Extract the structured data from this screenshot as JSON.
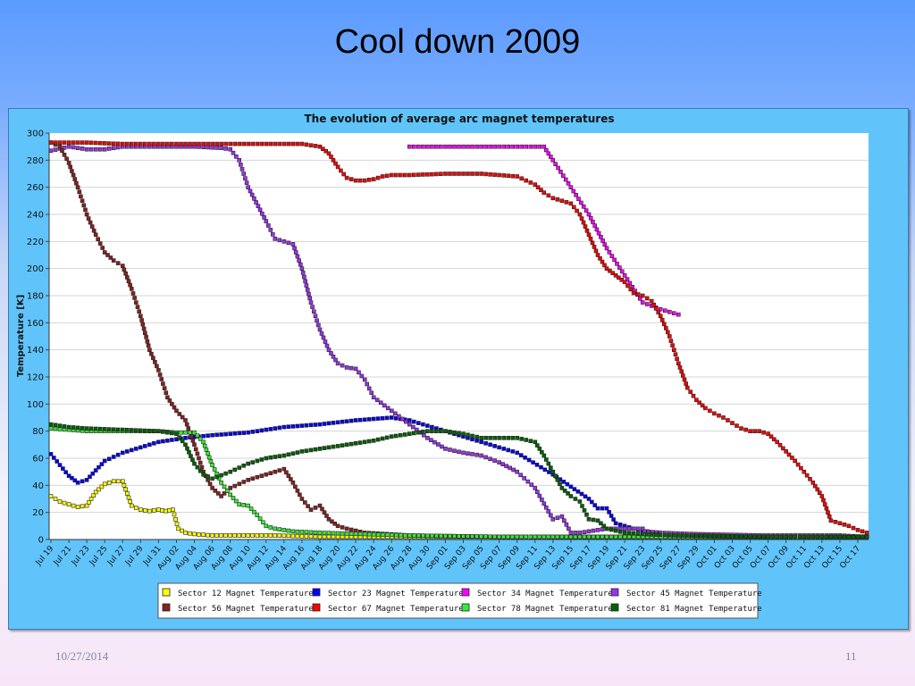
{
  "slide": {
    "title": "Cool down 2009",
    "footer_date": "10/27/2014",
    "page_number": "11"
  },
  "chart_data": {
    "type": "scatter",
    "title": "The evolution of average arc magnet temperatures",
    "ylabel": "Temperature [K]",
    "xlabel": "",
    "ylim": [
      0,
      300
    ],
    "yticks": [
      0,
      20,
      40,
      60,
      80,
      100,
      120,
      140,
      160,
      180,
      200,
      220,
      240,
      260,
      280,
      300
    ],
    "x_start": "Jul 19",
    "x_end": "Oct 18",
    "x_ticks": [
      "Jul 19",
      "Jul 21",
      "Jul 23",
      "Jul 25",
      "Jul 27",
      "Jul 29",
      "Jul 31",
      "Aug 02",
      "Aug 04",
      "Aug 06",
      "Aug 08",
      "Aug 10",
      "Aug 12",
      "Aug 14",
      "Aug 16",
      "Aug 18",
      "Aug 20",
      "Aug 22",
      "Aug 24",
      "Aug 26",
      "Aug 28",
      "Aug 30",
      "Sep 01",
      "Sep 03",
      "Sep 05",
      "Sep 07",
      "Sep 09",
      "Sep 11",
      "Sep 13",
      "Sep 15",
      "Sep 17",
      "Sep 19",
      "Sep 21",
      "Sep 23",
      "Sep 25",
      "Sep 27",
      "Sep 29",
      "Oct 01",
      "Oct 03",
      "Oct 05",
      "Oct 07",
      "Oct 09",
      "Oct 11",
      "Oct 13",
      "Oct 15",
      "Oct 17"
    ],
    "grid": true,
    "legend_position": "bottom",
    "series": [
      {
        "name": "Sector 12 Magnet Temperature",
        "color": "#ffff00",
        "points": [
          [
            0,
            32
          ],
          [
            1,
            28
          ],
          [
            2,
            26
          ],
          [
            3,
            24
          ],
          [
            4,
            25
          ],
          [
            5,
            35
          ],
          [
            6,
            41
          ],
          [
            7,
            43
          ],
          [
            8,
            43
          ],
          [
            9,
            25
          ],
          [
            10,
            22
          ],
          [
            11,
            21
          ],
          [
            12,
            22
          ],
          [
            12.8,
            21
          ],
          [
            13.6,
            22
          ],
          [
            14.2,
            8
          ],
          [
            15,
            5
          ],
          [
            16,
            4
          ],
          [
            18,
            3
          ],
          [
            20,
            3
          ],
          [
            25,
            3
          ],
          [
            30,
            2
          ],
          [
            40,
            2
          ],
          [
            60,
            2
          ],
          [
            80,
            2
          ],
          [
            91,
            2
          ]
        ]
      },
      {
        "name": "Sector 23 Magnet Temperature",
        "color": "#0000ff",
        "points": [
          [
            0,
            63
          ],
          [
            2,
            47
          ],
          [
            3,
            42
          ],
          [
            4,
            44
          ],
          [
            6,
            58
          ],
          [
            8,
            64
          ],
          [
            10,
            68
          ],
          [
            12,
            72
          ],
          [
            15,
            75
          ],
          [
            18,
            77
          ],
          [
            22,
            79
          ],
          [
            26,
            83
          ],
          [
            30,
            85
          ],
          [
            34,
            88
          ],
          [
            38,
            90
          ],
          [
            40,
            88
          ],
          [
            44,
            80
          ],
          [
            48,
            72
          ],
          [
            52,
            64
          ],
          [
            56,
            48
          ],
          [
            60,
            30
          ],
          [
            61,
            23
          ],
          [
            62,
            23
          ],
          [
            63,
            12
          ],
          [
            65,
            8
          ],
          [
            68,
            4
          ],
          [
            72,
            3
          ],
          [
            80,
            2
          ],
          [
            91,
            2
          ]
        ]
      },
      {
        "name": "Sector 34 Magnet Temperature",
        "color": "#ff00ff",
        "points": [
          [
            40,
            290
          ],
          [
            44,
            290
          ],
          [
            47,
            290
          ],
          [
            50,
            290
          ],
          [
            52,
            290
          ],
          [
            55,
            290
          ],
          [
            56,
            280
          ],
          [
            58,
            260
          ],
          [
            60,
            240
          ],
          [
            62,
            215
          ],
          [
            64,
            195
          ],
          [
            66,
            175
          ],
          [
            68,
            170
          ],
          [
            70,
            166
          ]
        ]
      },
      {
        "name": "Sector 45 Magnet Temperature",
        "color": "#9a33ee",
        "points": [
          [
            0,
            287
          ],
          [
            2,
            290
          ],
          [
            4,
            288
          ],
          [
            6,
            288
          ],
          [
            8,
            290
          ],
          [
            12,
            290
          ],
          [
            16,
            290
          ],
          [
            19,
            289
          ],
          [
            20,
            288
          ],
          [
            21,
            280
          ],
          [
            22,
            260
          ],
          [
            24,
            235
          ],
          [
            25,
            222
          ],
          [
            26,
            220
          ],
          [
            27,
            218
          ],
          [
            28,
            200
          ],
          [
            29,
            175
          ],
          [
            30,
            155
          ],
          [
            31,
            140
          ],
          [
            32,
            130
          ],
          [
            33,
            127
          ],
          [
            34,
            126
          ],
          [
            35,
            118
          ],
          [
            36,
            105
          ],
          [
            38,
            95
          ],
          [
            40,
            85
          ],
          [
            42,
            75
          ],
          [
            44,
            67
          ],
          [
            46,
            64
          ],
          [
            48,
            62
          ],
          [
            50,
            57
          ],
          [
            52,
            50
          ],
          [
            54,
            38
          ],
          [
            56,
            15
          ],
          [
            57,
            17
          ],
          [
            58,
            5
          ],
          [
            59,
            5
          ],
          [
            62,
            8
          ],
          [
            63,
            8
          ],
          [
            66,
            8
          ],
          [
            66.2,
            6
          ],
          [
            68,
            5
          ],
          [
            72,
            4
          ],
          [
            80,
            3
          ],
          [
            84,
            3
          ],
          [
            88,
            3
          ],
          [
            91,
            2
          ]
        ]
      },
      {
        "name": "Sector 56 Magnet Temperature",
        "color": "#8b2020",
        "points": [
          [
            0,
            293
          ],
          [
            1,
            290
          ],
          [
            2,
            278
          ],
          [
            3,
            260
          ],
          [
            4,
            240
          ],
          [
            5,
            225
          ],
          [
            6,
            212
          ],
          [
            7,
            206
          ],
          [
            8,
            202
          ],
          [
            9,
            185
          ],
          [
            10,
            165
          ],
          [
            11,
            140
          ],
          [
            12,
            125
          ],
          [
            13,
            105
          ],
          [
            14,
            95
          ],
          [
            15,
            88
          ],
          [
            16,
            70
          ],
          [
            17,
            50
          ],
          [
            18,
            38
          ],
          [
            19,
            32
          ],
          [
            20,
            38
          ],
          [
            22,
            44
          ],
          [
            24,
            48
          ],
          [
            26,
            52
          ],
          [
            27,
            42
          ],
          [
            28,
            30
          ],
          [
            29,
            22
          ],
          [
            30,
            25
          ],
          [
            31,
            15
          ],
          [
            32,
            10
          ],
          [
            33,
            8
          ],
          [
            35,
            5
          ],
          [
            40,
            3
          ],
          [
            50,
            2
          ],
          [
            60,
            2
          ],
          [
            91,
            2
          ]
        ]
      },
      {
        "name": "Sector 67 Magnet Temperature",
        "color": "#ff0000",
        "points": [
          [
            0,
            293
          ],
          [
            4,
            293
          ],
          [
            8,
            292
          ],
          [
            12,
            292
          ],
          [
            16,
            292
          ],
          [
            20,
            292
          ],
          [
            24,
            292
          ],
          [
            28,
            292
          ],
          [
            30,
            290
          ],
          [
            31,
            285
          ],
          [
            32,
            275
          ],
          [
            33,
            267
          ],
          [
            34,
            265
          ],
          [
            35,
            265
          ],
          [
            36,
            266
          ],
          [
            37,
            268
          ],
          [
            38,
            269
          ],
          [
            40,
            269
          ],
          [
            44,
            270
          ],
          [
            48,
            270
          ],
          [
            50,
            269
          ],
          [
            52,
            268
          ],
          [
            54,
            262
          ],
          [
            55,
            256
          ],
          [
            56,
            252
          ],
          [
            58,
            248
          ],
          [
            59,
            240
          ],
          [
            60,
            225
          ],
          [
            61,
            210
          ],
          [
            62,
            200
          ],
          [
            63,
            195
          ],
          [
            64,
            190
          ],
          [
            65,
            182
          ],
          [
            66,
            180
          ],
          [
            67,
            176
          ],
          [
            68,
            165
          ],
          [
            69,
            150
          ],
          [
            70,
            130
          ],
          [
            71,
            112
          ],
          [
            72,
            103
          ],
          [
            73,
            97
          ],
          [
            74,
            93
          ],
          [
            75,
            90
          ],
          [
            76,
            86
          ],
          [
            77,
            82
          ],
          [
            78,
            80
          ],
          [
            79,
            80
          ],
          [
            80,
            78
          ],
          [
            81,
            72
          ],
          [
            82,
            65
          ],
          [
            83,
            58
          ],
          [
            84,
            50
          ],
          [
            85,
            42
          ],
          [
            86,
            32
          ],
          [
            87,
            14
          ],
          [
            88,
            12
          ],
          [
            89,
            10
          ],
          [
            90,
            7
          ],
          [
            91,
            5
          ]
        ]
      },
      {
        "name": "Sector 78 Magnet Temperature",
        "color": "#33ee33",
        "points": [
          [
            0,
            82
          ],
          [
            4,
            80
          ],
          [
            8,
            80
          ],
          [
            12,
            80
          ],
          [
            14,
            79
          ],
          [
            16,
            79
          ],
          [
            17,
            72
          ],
          [
            18,
            55
          ],
          [
            19,
            42
          ],
          [
            20,
            33
          ],
          [
            21,
            26
          ],
          [
            22,
            25
          ],
          [
            23,
            18
          ],
          [
            24,
            10
          ],
          [
            25,
            8
          ],
          [
            27,
            6
          ],
          [
            30,
            5
          ],
          [
            35,
            4
          ],
          [
            40,
            3
          ],
          [
            50,
            2
          ],
          [
            60,
            2
          ],
          [
            91,
            2
          ]
        ]
      },
      {
        "name": "Sector 81 Magnet Temperature",
        "color": "#006400",
        "points": [
          [
            0,
            85
          ],
          [
            2,
            83
          ],
          [
            4,
            82
          ],
          [
            8,
            81
          ],
          [
            12,
            80
          ],
          [
            14,
            78
          ],
          [
            15,
            70
          ],
          [
            16,
            56
          ],
          [
            17,
            48
          ],
          [
            18,
            45
          ],
          [
            20,
            50
          ],
          [
            22,
            56
          ],
          [
            24,
            60
          ],
          [
            26,
            62
          ],
          [
            28,
            65
          ],
          [
            30,
            67
          ],
          [
            32,
            69
          ],
          [
            34,
            71
          ],
          [
            36,
            73
          ],
          [
            38,
            76
          ],
          [
            40,
            78
          ],
          [
            42,
            80
          ],
          [
            44,
            80
          ],
          [
            46,
            78
          ],
          [
            48,
            75
          ],
          [
            50,
            75
          ],
          [
            52,
            75
          ],
          [
            54,
            72
          ],
          [
            55,
            62
          ],
          [
            56,
            50
          ],
          [
            57,
            38
          ],
          [
            58,
            32
          ],
          [
            59,
            28
          ],
          [
            60,
            15
          ],
          [
            61,
            14
          ],
          [
            62,
            8
          ],
          [
            64,
            5
          ],
          [
            66,
            4
          ],
          [
            70,
            3
          ],
          [
            80,
            2
          ],
          [
            91,
            2
          ]
        ]
      }
    ]
  }
}
